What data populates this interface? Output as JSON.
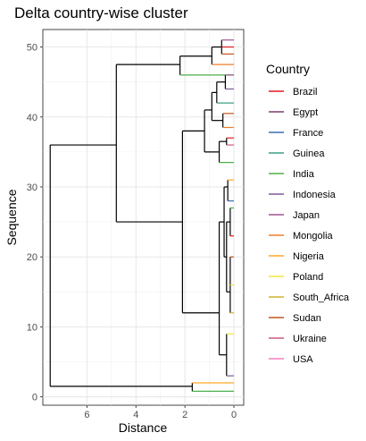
{
  "chart_data": {
    "type": "dendrogram",
    "title": "Delta country-wise cluster",
    "xlabel": "Distance",
    "ylabel": "Sequence",
    "xlim": [
      7.8,
      -0.4
    ],
    "ylim": [
      -1.2,
      52.5
    ],
    "x_ticks": [
      6,
      4,
      2,
      0
    ],
    "y_ticks": [
      0,
      10,
      20,
      30,
      40,
      50
    ],
    "grid": true,
    "legend_position": "right",
    "legend_title": "Country",
    "legend": [
      {
        "label": "Brazil",
        "color": "#e41a1c"
      },
      {
        "label": "Egypt",
        "color": "#7b3f6e"
      },
      {
        "label": "France",
        "color": "#3a6fb0"
      },
      {
        "label": "Guinea",
        "color": "#3f9e86"
      },
      {
        "label": "India",
        "color": "#4daf4a"
      },
      {
        "label": "Indonesia",
        "color": "#7e5a96"
      },
      {
        "label": "Japan",
        "color": "#a25490"
      },
      {
        "label": "Mongolia",
        "color": "#f07f2c"
      },
      {
        "label": "Nigeria",
        "color": "#ffa726"
      },
      {
        "label": "Poland",
        "color": "#f3e53a"
      },
      {
        "label": "South_Africa",
        "color": "#cdb42e"
      },
      {
        "label": "Sudan",
        "color": "#c4541c"
      },
      {
        "label": "Ukraine",
        "color": "#d0587e"
      },
      {
        "label": "USA",
        "color": "#f47fc0"
      }
    ],
    "segments": [
      [
        7.5,
        1.5,
        7.5,
        36
      ],
      [
        7.5,
        1.5,
        1.7,
        1.5
      ],
      [
        7.5,
        36,
        4.8,
        36
      ],
      [
        1.7,
        0.8,
        1.7,
        2.0
      ],
      [
        1.7,
        2.0,
        0,
        2.0,
        "#ffa726"
      ],
      [
        1.7,
        0.8,
        0,
        0.8,
        "#4daf4a"
      ],
      [
        4.8,
        25,
        4.8,
        47.5
      ],
      [
        4.8,
        47.5,
        2.2,
        47.5
      ],
      [
        4.8,
        25,
        2.1,
        25
      ],
      [
        2.2,
        46,
        2.2,
        48.7
      ],
      [
        2.2,
        46,
        0,
        46,
        "#4daf4a"
      ],
      [
        2.2,
        48.7,
        0.9,
        48.7
      ],
      [
        0.9,
        47.5,
        0.9,
        50
      ],
      [
        0.9,
        47.5,
        0,
        47.5,
        "#f07f2c"
      ],
      [
        0.9,
        50,
        0.5,
        50
      ],
      [
        0.5,
        49,
        0.5,
        51
      ],
      [
        0.5,
        51,
        0,
        51,
        "#a25490"
      ],
      [
        0.5,
        50,
        0,
        50,
        "#e41a1c"
      ],
      [
        0.5,
        49,
        0,
        49,
        "#c4541c"
      ],
      [
        2.1,
        12,
        2.1,
        38
      ],
      [
        2.1,
        38,
        1.2,
        38
      ],
      [
        2.1,
        12,
        0.6,
        12
      ],
      [
        1.2,
        35,
        1.2,
        41
      ],
      [
        1.2,
        41,
        0.9,
        41
      ],
      [
        1.2,
        35,
        0.6,
        35
      ],
      [
        0.9,
        39.5,
        0.9,
        43.5
      ],
      [
        0.9,
        43.5,
        0.7,
        43.5
      ],
      [
        0.7,
        42,
        0.7,
        45
      ],
      [
        0.7,
        45,
        0.35,
        45
      ],
      [
        0.35,
        44,
        0.35,
        46
      ],
      [
        0.35,
        46,
        0,
        46,
        "#a25490"
      ],
      [
        0.35,
        44,
        0,
        44,
        "#7e5a96"
      ],
      [
        0.7,
        42,
        0,
        42,
        "#3f9e86"
      ],
      [
        0.9,
        39.5,
        0.45,
        39.5
      ],
      [
        0.45,
        38.5,
        0.45,
        40.5
      ],
      [
        0.45,
        40.5,
        0,
        40.5,
        "#c4541c"
      ],
      [
        0.45,
        38.5,
        0,
        38.5,
        "#f07f2c"
      ],
      [
        0.6,
        33.5,
        0.6,
        36.5
      ],
      [
        0.6,
        36.5,
        0.3,
        36.5
      ],
      [
        0.3,
        36,
        0.3,
        37
      ],
      [
        0.3,
        37,
        0,
        37,
        "#e41a1c"
      ],
      [
        0.3,
        36,
        0,
        36,
        "#d0587e"
      ],
      [
        0.6,
        33.5,
        0,
        33.5,
        "#4daf4a"
      ],
      [
        0.6,
        6,
        0.6,
        25
      ],
      [
        0.6,
        25,
        0.4,
        25
      ],
      [
        0.6,
        6,
        0.3,
        6
      ],
      [
        0.4,
        20,
        0.4,
        30
      ],
      [
        0.4,
        30,
        0.25,
        30
      ],
      [
        0.25,
        28,
        0.25,
        31
      ],
      [
        0.25,
        31,
        0,
        31,
        "#ffa726"
      ],
      [
        0.25,
        28,
        0,
        28,
        "#3a6fb0"
      ],
      [
        0.4,
        20,
        0.3,
        20
      ],
      [
        0.3,
        15,
        0.3,
        25
      ],
      [
        0.3,
        25,
        0.15,
        25
      ],
      [
        0.15,
        23,
        0.15,
        27
      ],
      [
        0.15,
        27,
        0,
        27,
        "#4daf4a"
      ],
      [
        0.15,
        23,
        0,
        23,
        "#e41a1c"
      ],
      [
        0.3,
        15,
        0.15,
        15
      ],
      [
        0.15,
        12,
        0.15,
        20
      ],
      [
        0.15,
        20,
        0,
        20,
        "#c4541c"
      ],
      [
        0.15,
        16,
        0,
        16,
        "#f3e53a"
      ],
      [
        0.15,
        12,
        0,
        12,
        "#cdb42e"
      ],
      [
        0.3,
        3,
        0.3,
        9
      ],
      [
        0.3,
        9,
        0,
        9,
        "#f3e53a"
      ],
      [
        0.3,
        3,
        0,
        3,
        "#7e5a96"
      ]
    ],
    "tips": [
      {
        "y": 51,
        "country": "Japan"
      },
      {
        "y": 50,
        "country": "Brazil"
      },
      {
        "y": 49,
        "country": "Sudan"
      },
      {
        "y": 47.5,
        "country": "Mongolia"
      },
      {
        "y": 46,
        "country": "India"
      },
      {
        "y": 45,
        "country": "Japan"
      },
      {
        "y": 44,
        "country": "Indonesia"
      },
      {
        "y": 42,
        "country": "Guinea"
      },
      {
        "y": 40.5,
        "country": "Sudan"
      },
      {
        "y": 38.5,
        "country": "Mongolia"
      },
      {
        "y": 37,
        "country": "Brazil"
      },
      {
        "y": 36,
        "country": "Ukraine"
      },
      {
        "y": 33.5,
        "country": "India"
      },
      {
        "y": 31,
        "country": "Nigeria"
      },
      {
        "y": 28,
        "country": "France"
      },
      {
        "y": 27,
        "country": "India"
      },
      {
        "y": 23,
        "country": "Brazil"
      },
      {
        "y": 20,
        "country": "Sudan"
      },
      {
        "y": 16,
        "country": "Poland"
      },
      {
        "y": 12,
        "country": "South_Africa"
      },
      {
        "y": 9,
        "country": "Poland"
      },
      {
        "y": 3,
        "country": "Indonesia"
      },
      {
        "y": 2,
        "country": "Nigeria"
      },
      {
        "y": 0.8,
        "country": "India"
      }
    ]
  }
}
